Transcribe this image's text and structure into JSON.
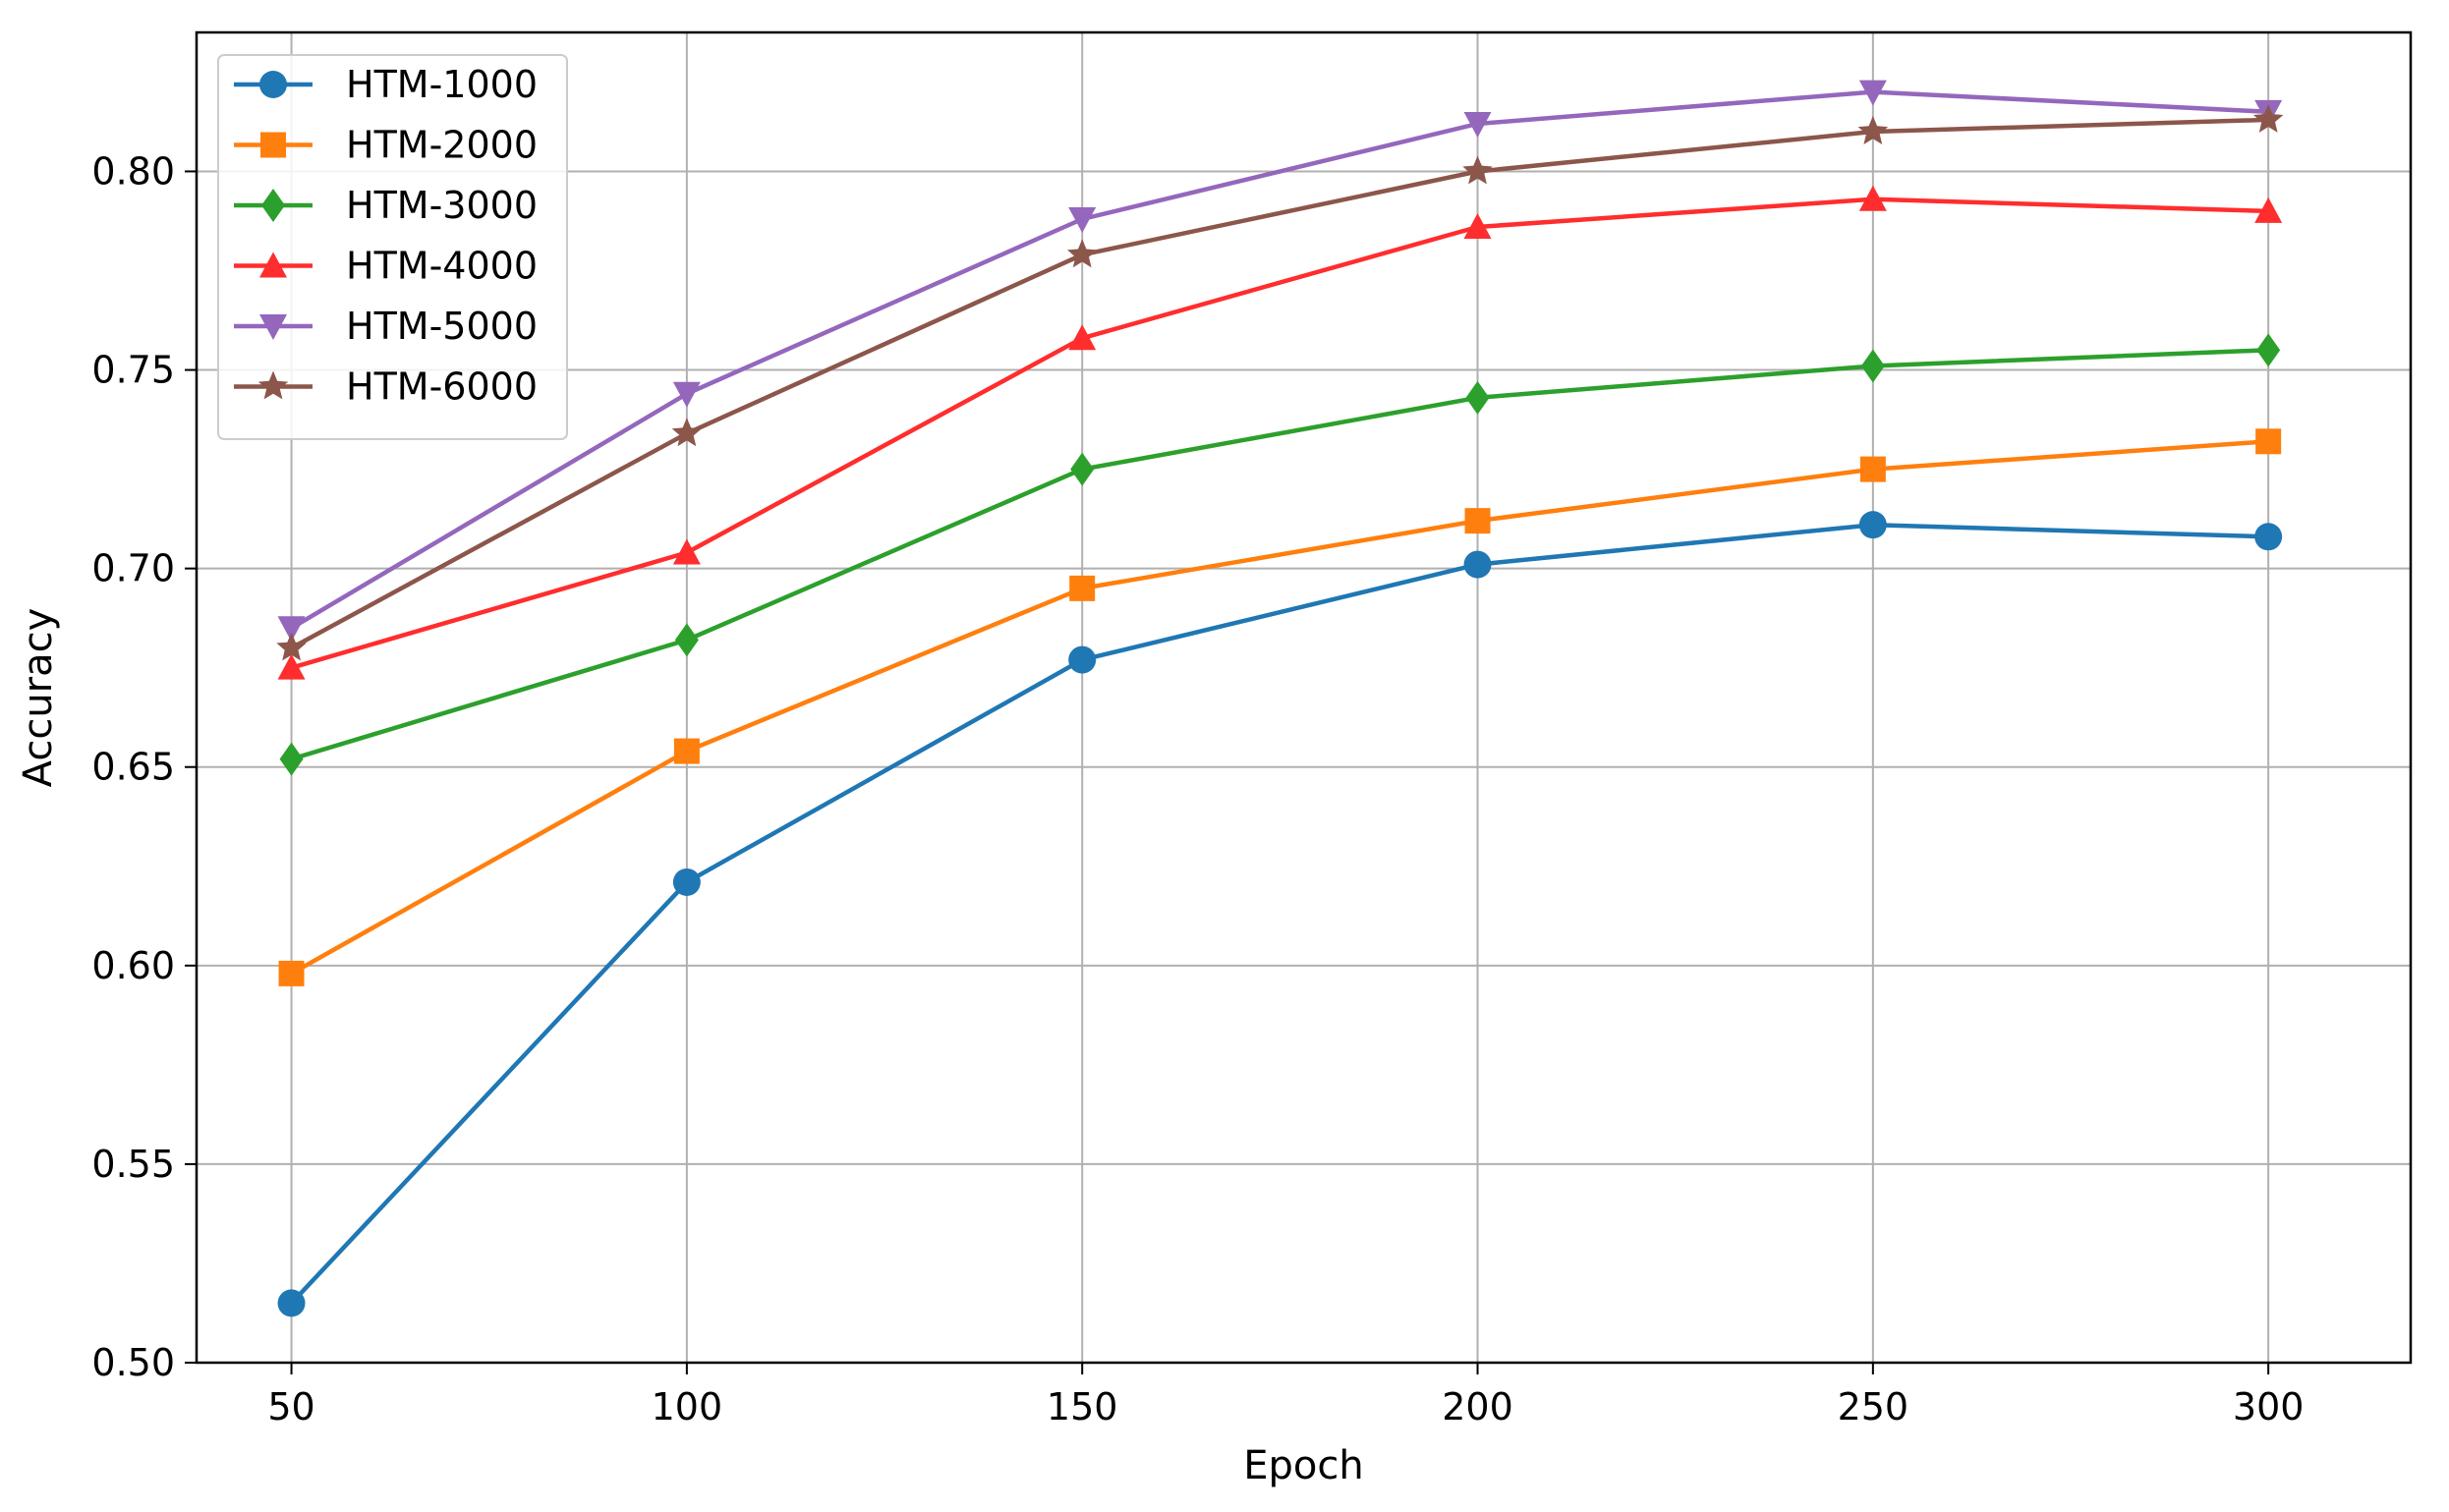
{
  "chart_data": {
    "type": "line",
    "title": "",
    "xlabel": "Epoch",
    "ylabel": "Accuracy",
    "x": [
      50,
      100,
      150,
      200,
      250,
      300
    ],
    "xlim": [
      38,
      318
    ],
    "ylim": [
      0.5,
      0.835
    ],
    "xticks": [
      50,
      100,
      150,
      200,
      250,
      300
    ],
    "xtick_labels": [
      "50",
      "100",
      "150",
      "200",
      "250",
      "300"
    ],
    "yticks": [
      0.5,
      0.55,
      0.6,
      0.65,
      0.7,
      0.75,
      0.8
    ],
    "ytick_labels": [
      "0.50",
      "0.55",
      "0.60",
      "0.65",
      "0.70",
      "0.75",
      "0.80"
    ],
    "grid": true,
    "legend_position": "top-left",
    "series": [
      {
        "name": "HTM-1000",
        "color": "#1f77b4",
        "marker": "circle",
        "values": [
          0.515,
          0.621,
          0.677,
          0.701,
          0.711,
          0.708
        ]
      },
      {
        "name": "HTM-2000",
        "color": "#ff7f0e",
        "marker": "square",
        "values": [
          0.598,
          0.654,
          0.695,
          0.712,
          0.725,
          0.732
        ]
      },
      {
        "name": "HTM-3000",
        "color": "#2ca02c",
        "marker": "diamond",
        "values": [
          0.652,
          0.682,
          0.725,
          0.743,
          0.751,
          0.755
        ]
      },
      {
        "name": "HTM-4000",
        "color": "#ff2d2d",
        "marker": "triangle-up",
        "values": [
          0.675,
          0.704,
          0.758,
          0.786,
          0.793,
          0.79
        ]
      },
      {
        "name": "HTM-5000",
        "color": "#9467bd",
        "marker": "triangle-down",
        "values": [
          0.685,
          0.744,
          0.788,
          0.812,
          0.82,
          0.815
        ]
      },
      {
        "name": "HTM-6000",
        "color": "#8c564b",
        "marker": "star",
        "values": [
          0.68,
          0.734,
          0.779,
          0.8,
          0.81,
          0.813
        ]
      }
    ]
  }
}
